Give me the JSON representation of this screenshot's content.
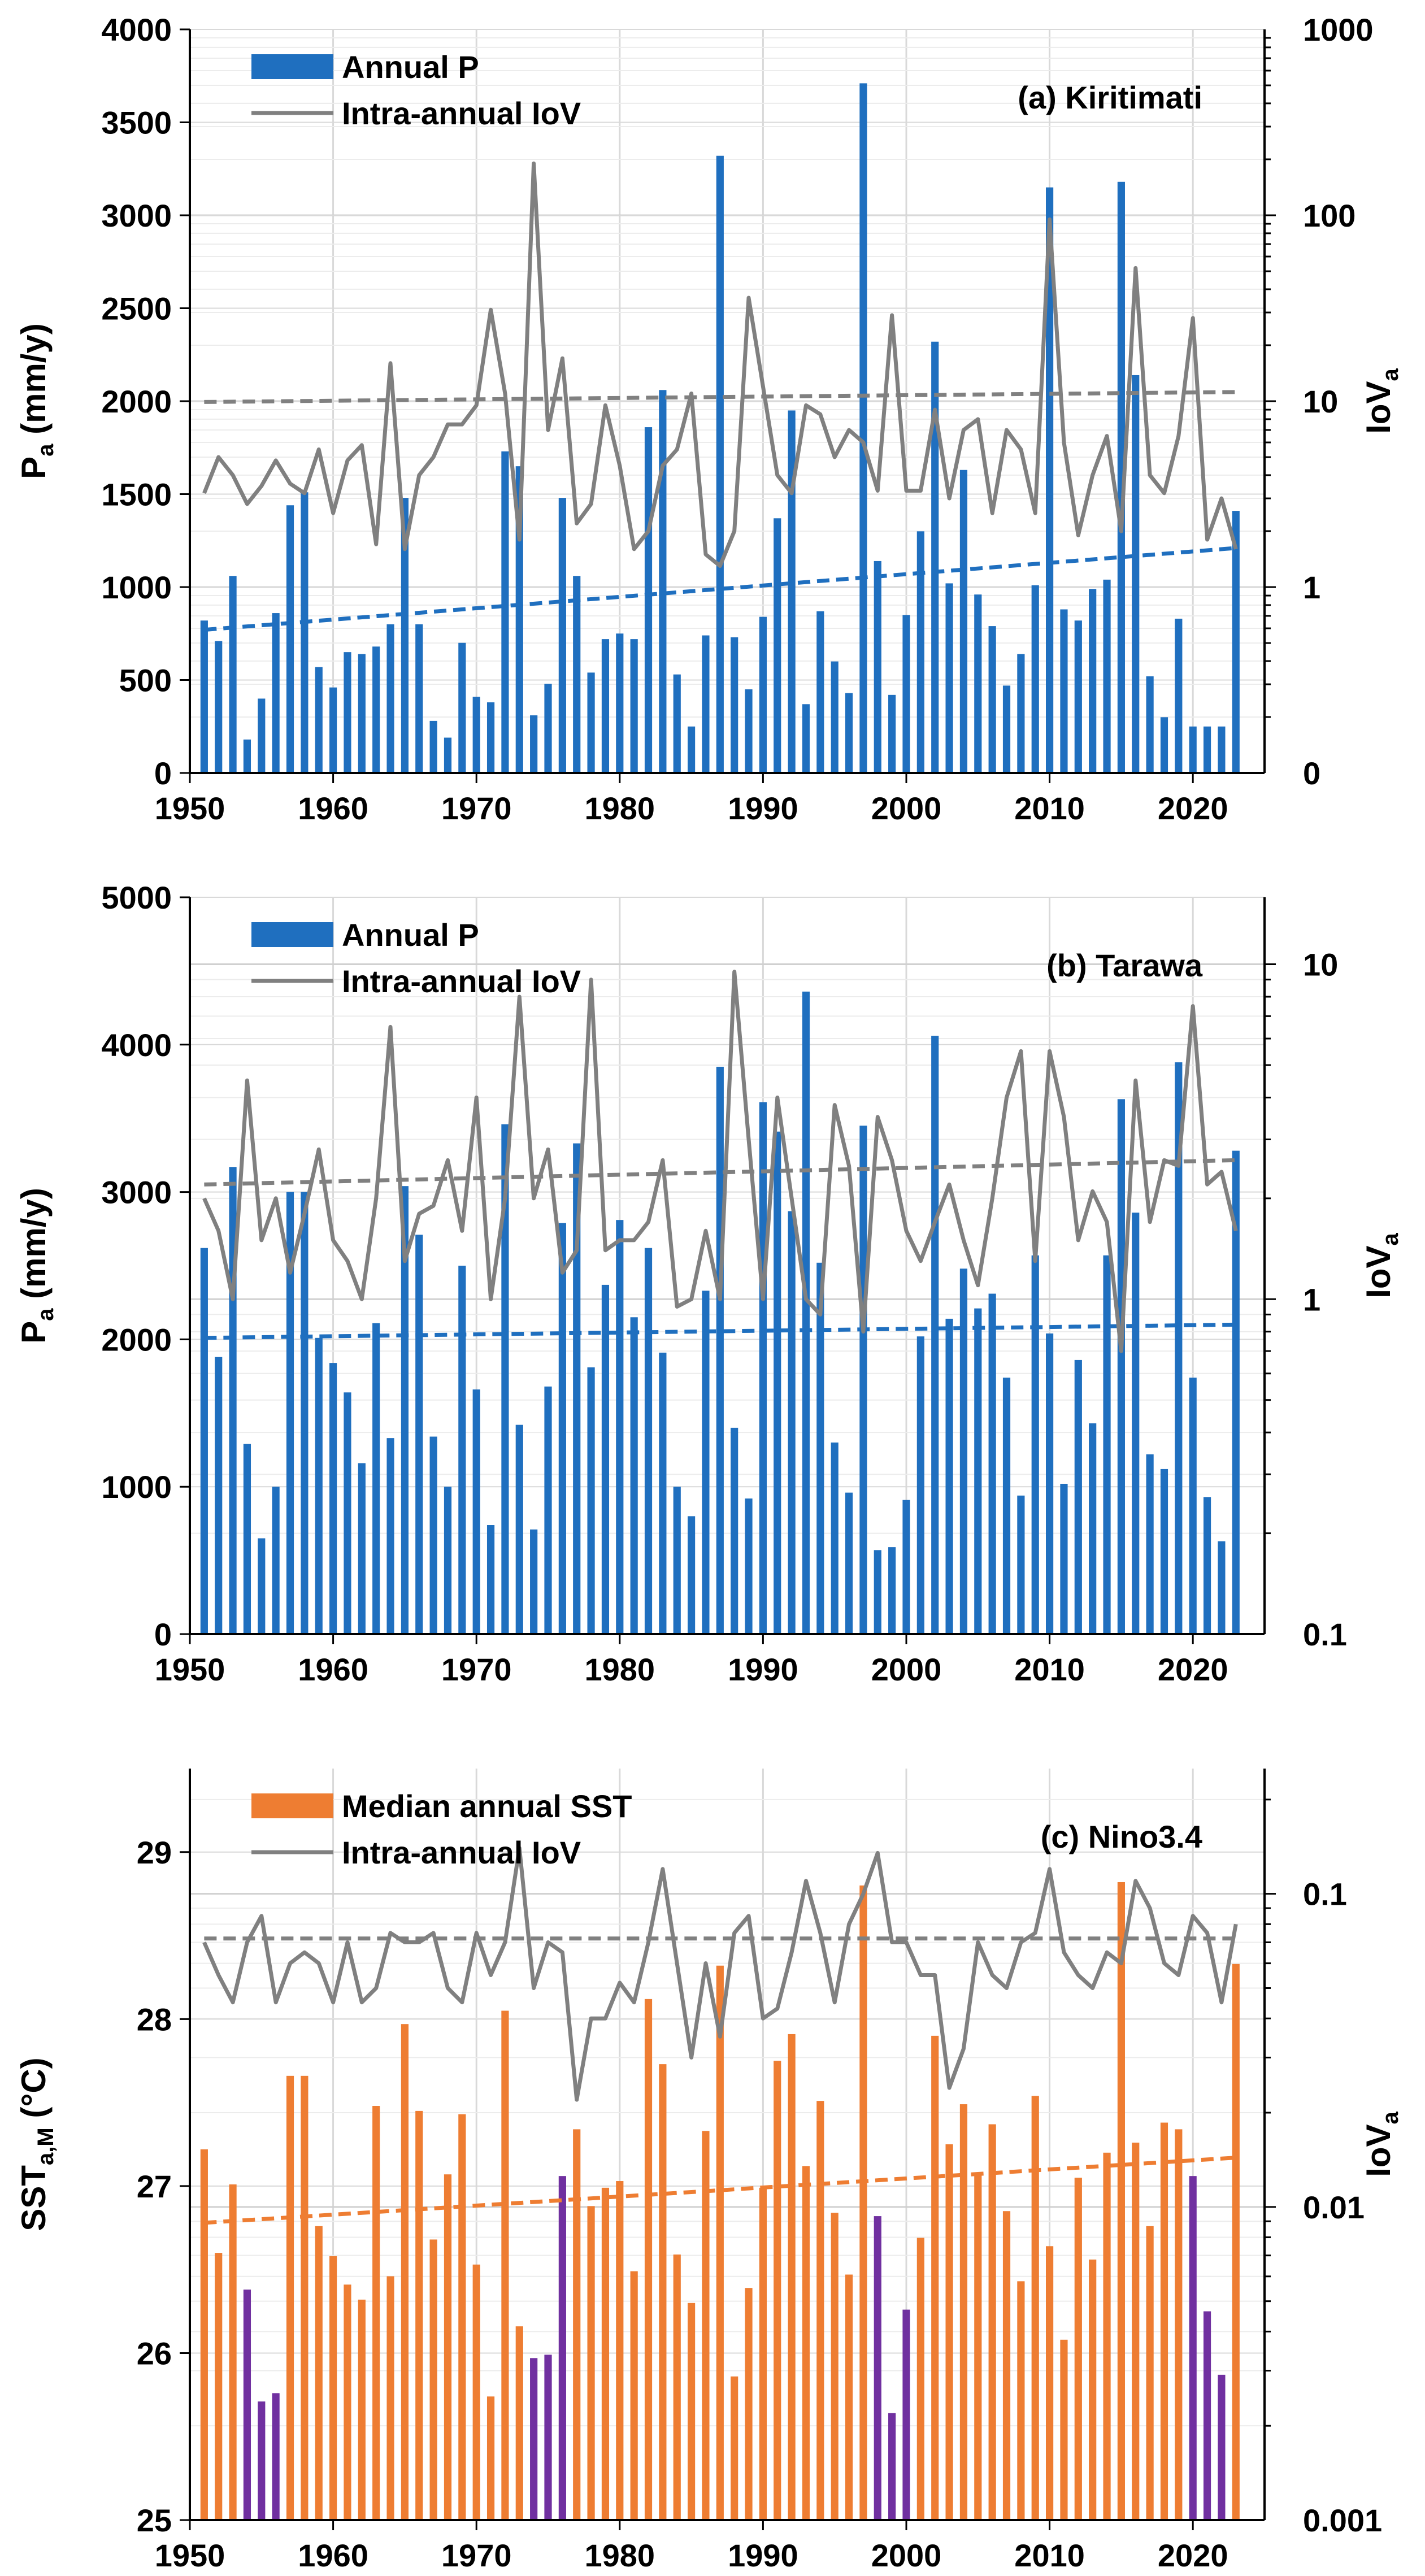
{
  "figure": {
    "years": [
      1951,
      1952,
      1953,
      1954,
      1955,
      1956,
      1957,
      1958,
      1959,
      1960,
      1961,
      1962,
      1963,
      1964,
      1965,
      1966,
      1967,
      1968,
      1969,
      1970,
      1971,
      1972,
      1973,
      1974,
      1975,
      1976,
      1977,
      1978,
      1979,
      1980,
      1981,
      1982,
      1983,
      1984,
      1985,
      1986,
      1987,
      1988,
      1989,
      1990,
      1991,
      1992,
      1993,
      1994,
      1995,
      1996,
      1997,
      1998,
      1999,
      2000,
      2001,
      2002,
      2003,
      2004,
      2005,
      2006,
      2007,
      2008,
      2009,
      2010,
      2011,
      2012,
      2013,
      2014,
      2015,
      2016,
      2017,
      2018,
      2019,
      2020,
      2021,
      2022,
      2023
    ],
    "x_ticks": [
      "1950",
      "1960",
      "1970",
      "1980",
      "1990",
      "2000",
      "2010",
      "2020"
    ],
    "colors": {
      "blue": "#1F6FBF",
      "orange": "#EE7D32",
      "purple": "#7030A0",
      "gray": "#808080"
    }
  },
  "chart_data": [
    {
      "type": "bar",
      "title": "(a) Kiritimati",
      "ylabel": "P",
      "ylabel_sub": "a",
      "ylabel_unit": " (mm/y)",
      "y2label": "IoV",
      "y2label_sub": "a",
      "ylim": [
        0,
        4000
      ],
      "yticks": [
        "0",
        "500",
        "1000",
        "1500",
        "2000",
        "2500",
        "3000",
        "3500",
        "4000"
      ],
      "y2ticks": [
        "0",
        "1",
        "10",
        "100",
        "1000"
      ],
      "y2log": [
        -1,
        3
      ],
      "legend": [
        "Annual P",
        "Intra-annual IoV"
      ],
      "series": [
        {
          "name": "Annual P",
          "values": [
            820,
            710,
            1060,
            180,
            400,
            860,
            1440,
            1510,
            570,
            460,
            650,
            640,
            680,
            800,
            1480,
            800,
            280,
            190,
            700,
            410,
            380,
            1730,
            1650,
            310,
            480,
            1480,
            1060,
            540,
            720,
            750,
            720,
            1860,
            2060,
            530,
            250,
            740,
            3320,
            730,
            450,
            840,
            1370,
            1950,
            370,
            870,
            600,
            430,
            3710,
            1140,
            420,
            850,
            1300,
            2320,
            1020,
            1630,
            960,
            790,
            470,
            640,
            1010,
            3150,
            880,
            820,
            990,
            1040,
            3180,
            2140,
            520,
            300,
            830,
            250,
            250,
            250,
            1410
          ]
        },
        {
          "name": "Intra-annual IoV",
          "values": [
            3.2,
            5.0,
            4.0,
            2.8,
            3.5,
            4.8,
            3.6,
            3.2,
            5.5,
            2.5,
            4.8,
            5.8,
            1.7,
            16,
            1.6,
            4.0,
            5.0,
            7.5,
            7.5,
            9.5,
            31,
            11,
            1.8,
            190,
            7.0,
            17,
            2.2,
            2.8,
            9.5,
            4.5,
            1.6,
            2.0,
            4.5,
            5.5,
            11,
            1.5,
            1.3,
            2.0,
            36,
            12,
            4.0,
            3.2,
            9.5,
            8.5,
            5.0,
            7.0,
            6.0,
            3.3,
            29,
            3.3,
            3.3,
            9.0,
            3.0,
            7.0,
            8.0,
            2.5,
            7.0,
            5.5,
            2.5,
            95,
            6.0,
            1.9,
            4.0,
            6.5,
            2.0,
            52,
            4.0,
            3.2,
            6.5,
            28,
            1.8,
            3.0,
            1.6
          ]
        },
        {
          "name": "P trend",
          "values": [
            770,
            1210
          ]
        },
        {
          "name": "IoV trend",
          "values": [
            9.9,
            11.2
          ]
        }
      ]
    },
    {
      "type": "bar",
      "title": "(b) Tarawa",
      "ylabel": "P",
      "ylabel_sub": "a",
      "ylabel_unit": " (mm/y)",
      "y2label": "IoV",
      "y2label_sub": "a",
      "ylim": [
        0,
        5000
      ],
      "yticks": [
        "0",
        "1000",
        "2000",
        "3000",
        "4000",
        "5000"
      ],
      "y2ticks": [
        "0.1",
        "1",
        "10"
      ],
      "y2log": [
        -1,
        1.2
      ],
      "legend": [
        "Annual P",
        "Intra-annual IoV"
      ],
      "series": [
        {
          "name": "Annual P",
          "values": [
            2620,
            1880,
            3170,
            1290,
            650,
            1000,
            3000,
            3000,
            2010,
            1840,
            1640,
            1160,
            2110,
            1330,
            3040,
            2710,
            1340,
            1000,
            2500,
            1660,
            740,
            3460,
            1420,
            710,
            1680,
            2790,
            3330,
            1810,
            2370,
            2810,
            2150,
            2620,
            1910,
            1000,
            800,
            2330,
            3850,
            1400,
            920,
            3610,
            3410,
            2870,
            4360,
            2520,
            1300,
            960,
            3450,
            570,
            590,
            910,
            2020,
            4060,
            2140,
            2480,
            2210,
            2310,
            1740,
            940,
            2570,
            2040,
            1020,
            1860,
            1430,
            2570,
            3630,
            2860,
            1220,
            1120,
            3880,
            1740,
            930,
            630,
            3280
          ]
        },
        {
          "name": "Intra-annual IoV",
          "values": [
            2.0,
            1.6,
            1.0,
            4.5,
            1.5,
            2.0,
            1.2,
            1.8,
            2.8,
            1.5,
            1.3,
            1.0,
            2.0,
            6.5,
            1.3,
            1.8,
            1.9,
            2.6,
            1.6,
            4.0,
            1.0,
            2.0,
            8.0,
            2.0,
            2.8,
            1.2,
            1.4,
            9.0,
            1.4,
            1.5,
            1.5,
            1.7,
            2.6,
            0.95,
            1.0,
            1.6,
            1.0,
            9.5,
            3.0,
            1.0,
            4.0,
            2.0,
            1.0,
            0.9,
            3.8,
            2.5,
            0.8,
            3.5,
            2.6,
            1.6,
            1.3,
            1.7,
            2.2,
            1.5,
            1.1,
            2.0,
            4.0,
            5.5,
            1.3,
            5.5,
            3.5,
            1.5,
            2.1,
            1.7,
            0.7,
            4.5,
            1.7,
            2.6,
            2.5,
            7.5,
            2.2,
            2.4,
            1.6
          ]
        },
        {
          "name": "P trend",
          "values": [
            2010,
            2100
          ]
        },
        {
          "name": "IoV trend",
          "values": [
            2.2,
            2.6
          ]
        }
      ]
    },
    {
      "type": "bar",
      "title": "(c) Nino3.4",
      "ylabel": "SST",
      "ylabel_sub": "a,M",
      "ylabel_unit": " (°C)",
      "y2label": "IoV",
      "y2label_sub": "a",
      "ylim": [
        25,
        29.5
      ],
      "yticks": [
        "25",
        "26",
        "27",
        "28",
        "29"
      ],
      "y2ticks": [
        "0.001",
        "0.01",
        "0.1"
      ],
      "y2log": [
        -3,
        -0.6
      ],
      "legend": [
        "Median annual SST",
        "Intra-annual IoV"
      ],
      "purple_years": [
        1954,
        1955,
        1956,
        1974,
        1975,
        1976,
        1998,
        1999,
        2000,
        2020,
        2021,
        2022
      ],
      "series": [
        {
          "name": "Median annual SST",
          "values": [
            27.22,
            26.6,
            27.01,
            26.38,
            25.71,
            25.76,
            27.66,
            27.66,
            26.76,
            26.58,
            26.41,
            26.32,
            27.48,
            26.46,
            27.97,
            27.45,
            26.68,
            27.07,
            27.43,
            26.53,
            25.74,
            28.05,
            26.16,
            25.97,
            25.99,
            27.06,
            27.34,
            26.88,
            26.99,
            27.03,
            26.49,
            28.12,
            27.73,
            26.59,
            26.3,
            27.33,
            28.32,
            25.86,
            26.39,
            26.99,
            27.75,
            27.91,
            27.12,
            27.51,
            26.84,
            26.47,
            28.8,
            26.82,
            25.64,
            26.26,
            26.69,
            27.9,
            27.25,
            27.49,
            27.08,
            27.37,
            26.85,
            26.43,
            27.54,
            26.64,
            26.08,
            27.05,
            26.56,
            27.2,
            28.82,
            27.26,
            26.76,
            27.38,
            27.34,
            27.06,
            26.25,
            25.87,
            28.33
          ]
        },
        {
          "name": "Intra-annual IoV",
          "values": [
            0.07,
            0.055,
            0.045,
            0.07,
            0.085,
            0.045,
            0.06,
            0.065,
            0.06,
            0.045,
            0.07,
            0.045,
            0.05,
            0.075,
            0.07,
            0.07,
            0.075,
            0.05,
            0.045,
            0.075,
            0.055,
            0.07,
            0.14,
            0.05,
            0.07,
            0.065,
            0.022,
            0.04,
            0.04,
            0.052,
            0.045,
            0.07,
            0.12,
            0.06,
            0.03,
            0.06,
            0.035,
            0.075,
            0.085,
            0.04,
            0.043,
            0.065,
            0.11,
            0.075,
            0.045,
            0.08,
            0.1,
            0.135,
            0.07,
            0.07,
            0.055,
            0.055,
            0.024,
            0.032,
            0.07,
            0.055,
            0.05,
            0.07,
            0.075,
            0.12,
            0.065,
            0.055,
            0.05,
            0.065,
            0.06,
            0.11,
            0.09,
            0.06,
            0.055,
            0.085,
            0.075,
            0.045,
            0.08
          ]
        },
        {
          "name": "SST trend",
          "values": [
            26.78,
            27.17
          ]
        },
        {
          "name": "IoV trend",
          "values": [
            0.072,
            0.072
          ]
        }
      ]
    }
  ]
}
